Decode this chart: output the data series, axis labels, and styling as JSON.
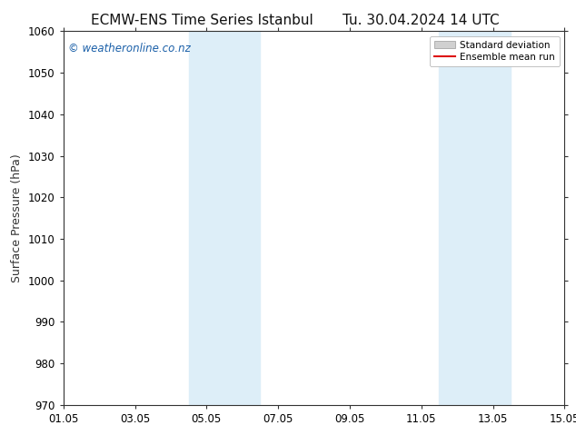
{
  "title_left": "ECMW-ENS Time Series Istanbul",
  "title_right": "Tu. 30.04.2024 14 UTC",
  "ylabel": "Surface Pressure (hPa)",
  "ylim": [
    970,
    1060
  ],
  "yticks": [
    970,
    980,
    990,
    1000,
    1010,
    1020,
    1030,
    1040,
    1050,
    1060
  ],
  "xtick_labels": [
    "01.05",
    "03.05",
    "05.05",
    "07.05",
    "09.05",
    "11.05",
    "13.05",
    "15.05"
  ],
  "xtick_positions": [
    0,
    2,
    4,
    6,
    8,
    10,
    12,
    14
  ],
  "xlim": [
    0,
    14
  ],
  "shaded_regions": [
    {
      "x_start": 3.5,
      "x_end": 5.5
    },
    {
      "x_start": 10.5,
      "x_end": 12.5
    }
  ],
  "shaded_color": "#ddeef8",
  "background_color": "#ffffff",
  "watermark_text": "© weatheronline.co.nz",
  "watermark_color": "#1a5fa8",
  "legend_std_label": "Standard deviation",
  "legend_mean_label": "Ensemble mean run",
  "legend_std_facecolor": "#d0d0d0",
  "legend_std_edgecolor": "#999999",
  "legend_mean_color": "#dd1111",
  "axis_color": "#333333",
  "tick_color": "#333333",
  "title_fontsize": 11,
  "label_fontsize": 9,
  "tick_fontsize": 8.5,
  "watermark_fontsize": 8.5,
  "legend_fontsize": 7.5
}
